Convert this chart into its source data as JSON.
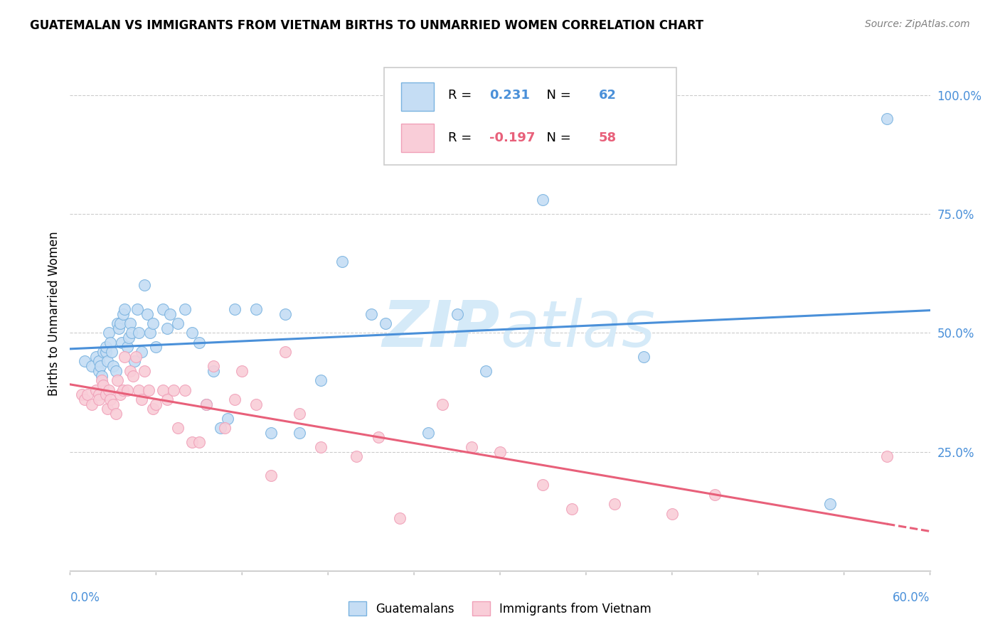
{
  "title": "GUATEMALAN VS IMMIGRANTS FROM VIETNAM BIRTHS TO UNMARRIED WOMEN CORRELATION CHART",
  "source": "Source: ZipAtlas.com",
  "ylabel": "Births to Unmarried Women",
  "xmin": 0.0,
  "xmax": 0.6,
  "ymin": 0.0,
  "ymax": 1.08,
  "yticks": [
    0.25,
    0.5,
    0.75,
    1.0
  ],
  "ytick_labels": [
    "25.0%",
    "50.0%",
    "75.0%",
    "100.0%"
  ],
  "blue_R": 0.231,
  "blue_N": 62,
  "pink_R": -0.197,
  "pink_N": 58,
  "blue_face_color": "#c5ddf4",
  "pink_face_color": "#f9cdd8",
  "blue_edge_color": "#7ab3e0",
  "pink_edge_color": "#f0a0b8",
  "blue_line_color": "#4a90d9",
  "pink_line_color": "#e8607a",
  "watermark_color": "#d5eaf8",
  "legend_blue_label": "Guatemalans",
  "legend_pink_label": "Immigrants from Vietnam",
  "blue_scatter_x": [
    0.01,
    0.015,
    0.018,
    0.02,
    0.02,
    0.021,
    0.022,
    0.023,
    0.025,
    0.025,
    0.026,
    0.027,
    0.028,
    0.029,
    0.03,
    0.032,
    0.033,
    0.034,
    0.035,
    0.036,
    0.037,
    0.038,
    0.04,
    0.041,
    0.042,
    0.043,
    0.045,
    0.047,
    0.048,
    0.05,
    0.052,
    0.054,
    0.056,
    0.058,
    0.06,
    0.065,
    0.068,
    0.07,
    0.075,
    0.08,
    0.085,
    0.09,
    0.095,
    0.1,
    0.105,
    0.11,
    0.115,
    0.13,
    0.14,
    0.15,
    0.16,
    0.175,
    0.19,
    0.21,
    0.22,
    0.25,
    0.27,
    0.29,
    0.33,
    0.4,
    0.53,
    0.57
  ],
  "blue_scatter_y": [
    0.44,
    0.43,
    0.45,
    0.42,
    0.44,
    0.43,
    0.41,
    0.46,
    0.46,
    0.47,
    0.44,
    0.5,
    0.48,
    0.46,
    0.43,
    0.42,
    0.52,
    0.51,
    0.52,
    0.48,
    0.54,
    0.55,
    0.47,
    0.49,
    0.52,
    0.5,
    0.44,
    0.55,
    0.5,
    0.46,
    0.6,
    0.54,
    0.5,
    0.52,
    0.47,
    0.55,
    0.51,
    0.54,
    0.52,
    0.55,
    0.5,
    0.48,
    0.35,
    0.42,
    0.3,
    0.32,
    0.55,
    0.55,
    0.29,
    0.54,
    0.29,
    0.4,
    0.65,
    0.54,
    0.52,
    0.29,
    0.54,
    0.42,
    0.78,
    0.45,
    0.14,
    0.95
  ],
  "pink_scatter_x": [
    0.008,
    0.01,
    0.012,
    0.015,
    0.018,
    0.02,
    0.02,
    0.022,
    0.023,
    0.025,
    0.026,
    0.027,
    0.028,
    0.03,
    0.032,
    0.033,
    0.035,
    0.037,
    0.038,
    0.04,
    0.042,
    0.044,
    0.046,
    0.048,
    0.05,
    0.052,
    0.055,
    0.058,
    0.06,
    0.065,
    0.068,
    0.072,
    0.075,
    0.08,
    0.085,
    0.09,
    0.095,
    0.1,
    0.108,
    0.115,
    0.12,
    0.13,
    0.14,
    0.15,
    0.16,
    0.175,
    0.2,
    0.215,
    0.23,
    0.26,
    0.28,
    0.3,
    0.33,
    0.35,
    0.38,
    0.42,
    0.45,
    0.57
  ],
  "pink_scatter_y": [
    0.37,
    0.36,
    0.37,
    0.35,
    0.38,
    0.37,
    0.36,
    0.4,
    0.39,
    0.37,
    0.34,
    0.38,
    0.36,
    0.35,
    0.33,
    0.4,
    0.37,
    0.38,
    0.45,
    0.38,
    0.42,
    0.41,
    0.45,
    0.38,
    0.36,
    0.42,
    0.38,
    0.34,
    0.35,
    0.38,
    0.36,
    0.38,
    0.3,
    0.38,
    0.27,
    0.27,
    0.35,
    0.43,
    0.3,
    0.36,
    0.42,
    0.35,
    0.2,
    0.46,
    0.33,
    0.26,
    0.24,
    0.28,
    0.11,
    0.35,
    0.26,
    0.25,
    0.18,
    0.13,
    0.14,
    0.12,
    0.16,
    0.24
  ]
}
